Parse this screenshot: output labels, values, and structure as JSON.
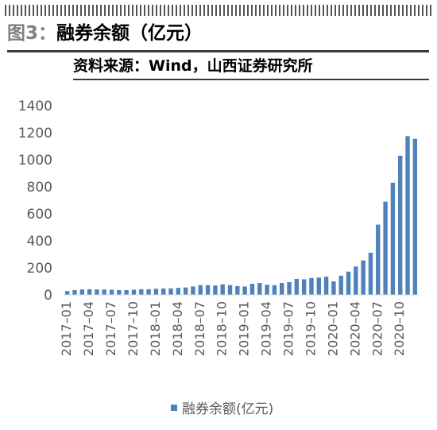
{
  "header": {
    "figure_label": "图3：",
    "figure_title": "融券余额（亿元）",
    "source": "资料来源：Wind，山西证券研究所"
  },
  "colors": {
    "bar": "#4f81bd",
    "axis_text": "#595959"
  },
  "chart_data": {
    "type": "bar",
    "title": "融券余额（亿元）",
    "xlabel": "",
    "ylabel": "",
    "ylim": [
      0,
      1400
    ],
    "yticks": [
      0,
      200,
      400,
      600,
      800,
      1000,
      1200,
      1400
    ],
    "grid": false,
    "legend_position": "bottom",
    "categories": [
      "2017-01",
      "2017-02",
      "2017-03",
      "2017-04",
      "2017-05",
      "2017-06",
      "2017-07",
      "2017-08",
      "2017-09",
      "2017-10",
      "2017-11",
      "2017-12",
      "2018-01",
      "2018-02",
      "2018-03",
      "2018-04",
      "2018-05",
      "2018-06",
      "2018-07",
      "2018-08",
      "2018-09",
      "2018-10",
      "2018-11",
      "2018-12",
      "2019-01",
      "2019-02",
      "2019-03",
      "2019-04",
      "2019-05",
      "2019-06",
      "2019-07",
      "2019-08",
      "2019-09",
      "2019-10",
      "2019-11",
      "2019-12",
      "2020-01",
      "2020-02",
      "2020-03",
      "2020-04",
      "2020-05",
      "2020-06",
      "2020-07",
      "2020-08",
      "2020-09",
      "2020-10",
      "2020-11",
      "2020-12"
    ],
    "tick_labels": [
      "2017–01",
      "2017–04",
      "2017–07",
      "2017–10",
      "2018–01",
      "2018–04",
      "2018–07",
      "2018–10",
      "2019–01",
      "2019–04",
      "2019–07",
      "2019–10",
      "2020–01",
      "2020–04",
      "2020–07",
      "2020–10"
    ],
    "series": [
      {
        "name": "融券余额(亿元)",
        "values": [
          28,
          35,
          40,
          42,
          40,
          40,
          38,
          35,
          35,
          38,
          42,
          42,
          45,
          47,
          48,
          52,
          55,
          62,
          72,
          72,
          70,
          78,
          72,
          65,
          62,
          82,
          88,
          75,
          72,
          88,
          95,
          118,
          115,
          125,
          128,
          135,
          100,
          142,
          172,
          210,
          255,
          312,
          520,
          690,
          830,
          1030,
          1175,
          1155
        ]
      }
    ]
  }
}
